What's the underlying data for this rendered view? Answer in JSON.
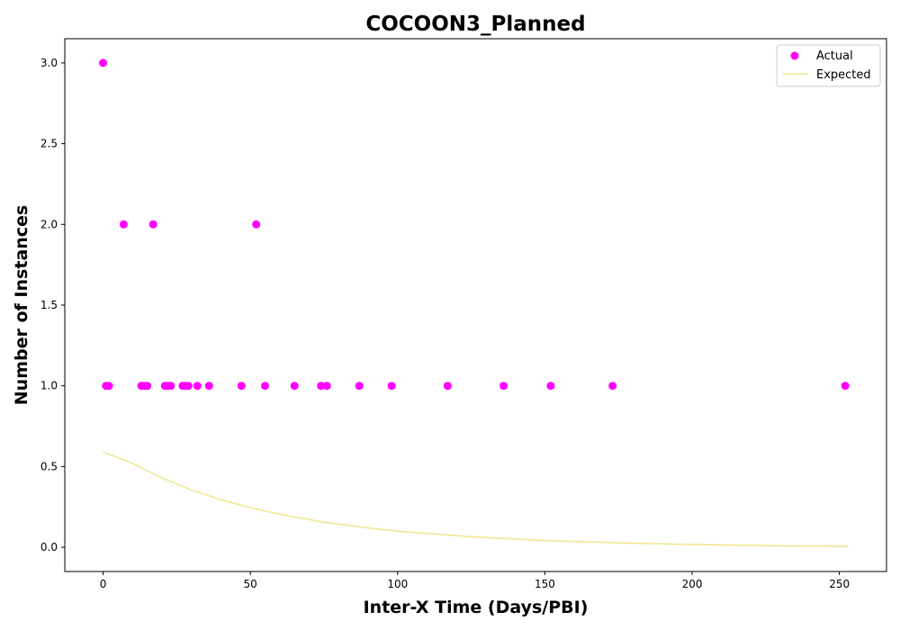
{
  "chart_data": {
    "type": "scatter",
    "title": "COCOON3_Planned",
    "xlabel": "Inter-X Time (Days/PBI)",
    "ylabel": "Number of Instances",
    "xlim": [
      -13,
      266
    ],
    "ylim": [
      -0.15,
      3.15
    ],
    "xticks": [
      0,
      50,
      100,
      150,
      200,
      250
    ],
    "yticks": [
      0.0,
      0.5,
      1.0,
      1.5,
      2.0,
      2.5,
      3.0
    ],
    "grid": false,
    "legend_position": "top-right",
    "series": [
      {
        "name": "Actual",
        "kind": "scatter",
        "color": "#ff00ff",
        "points": [
          [
            0,
            3
          ],
          [
            1,
            1
          ],
          [
            2,
            1
          ],
          [
            7,
            2
          ],
          [
            13,
            1
          ],
          [
            14,
            1
          ],
          [
            15,
            1
          ],
          [
            17,
            2
          ],
          [
            21,
            1
          ],
          [
            22,
            1
          ],
          [
            23,
            1
          ],
          [
            27,
            1
          ],
          [
            28,
            1
          ],
          [
            29,
            1
          ],
          [
            32,
            1
          ],
          [
            36,
            1
          ],
          [
            47,
            1
          ],
          [
            52,
            2
          ],
          [
            55,
            1
          ],
          [
            65,
            1
          ],
          [
            74,
            1
          ],
          [
            76,
            1
          ],
          [
            87,
            1
          ],
          [
            98,
            1
          ],
          [
            117,
            1
          ],
          [
            136,
            1
          ],
          [
            152,
            1
          ],
          [
            173,
            1
          ],
          [
            252,
            1
          ]
        ]
      },
      {
        "name": "Expected",
        "kind": "line",
        "color": "#f0e68c",
        "points": [
          [
            0,
            0.59
          ],
          [
            10,
            0.52
          ],
          [
            20,
            0.43
          ],
          [
            30,
            0.355
          ],
          [
            40,
            0.295
          ],
          [
            50,
            0.245
          ],
          [
            60,
            0.205
          ],
          [
            75,
            0.155
          ],
          [
            90,
            0.12
          ],
          [
            100,
            0.1
          ],
          [
            125,
            0.065
          ],
          [
            150,
            0.042
          ],
          [
            175,
            0.027
          ],
          [
            200,
            0.017
          ],
          [
            225,
            0.01
          ],
          [
            253,
            0.006
          ]
        ]
      }
    ]
  }
}
